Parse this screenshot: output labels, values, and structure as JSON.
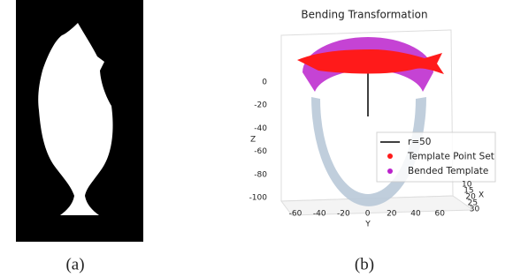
{
  "panels": [
    {
      "caption": "(a)"
    },
    {
      "caption": "(b)",
      "plot": {
        "title": "Bending Transformation",
        "z_label": "Z",
        "y_label": "Y",
        "x_label": "X",
        "z_ticks": [
          0,
          -20,
          -40,
          -60,
          -80,
          -100
        ],
        "y_ticks": [
          -60,
          -40,
          -20,
          0,
          20,
          40,
          60
        ],
        "x_ticks": [
          10,
          15,
          20,
          25,
          30
        ],
        "legend": [
          "r=50",
          "Template Point Set",
          "Bended Template"
        ]
      }
    }
  ]
}
